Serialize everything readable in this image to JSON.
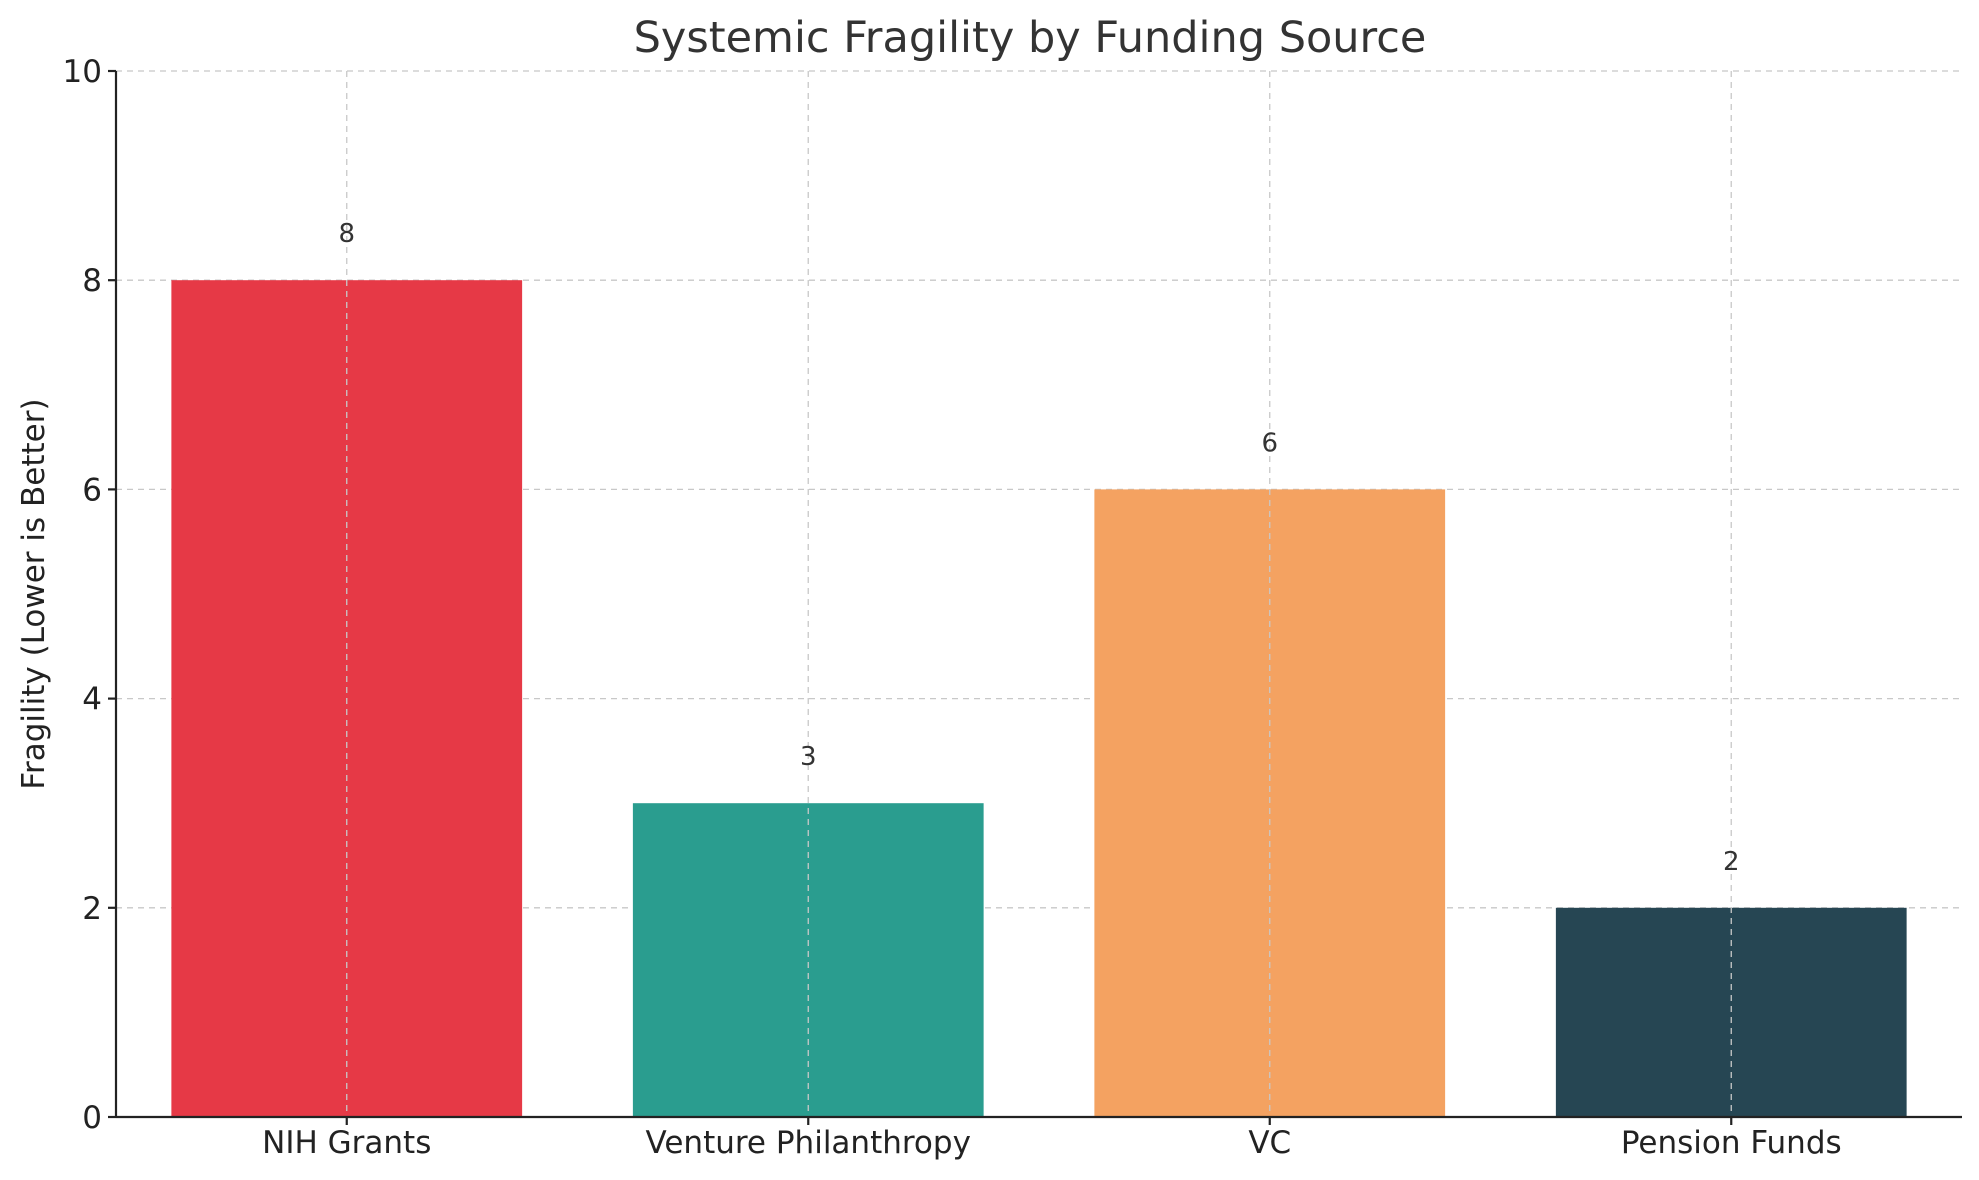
{
  "chart_data": {
    "type": "bar",
    "title": "Systemic Fragility by Funding Source",
    "xlabel": "",
    "ylabel": "Fragility (Lower is Better)",
    "categories": [
      "NIH Grants",
      "Venture Philanthropy",
      "VC",
      "Pension Funds"
    ],
    "values": [
      8,
      3,
      6,
      2
    ],
    "data_labels": [
      "8",
      "3",
      "6",
      "2"
    ],
    "colors": [
      "#e63946",
      "#2a9d8f",
      "#f4a261",
      "#264653"
    ],
    "ylim": [
      0,
      10
    ],
    "yticks": [
      0,
      2,
      4,
      6,
      8,
      10
    ],
    "ytick_labels": [
      "0",
      "2",
      "4",
      "6",
      "8",
      "10"
    ],
    "grid": true,
    "legend": "none"
  }
}
